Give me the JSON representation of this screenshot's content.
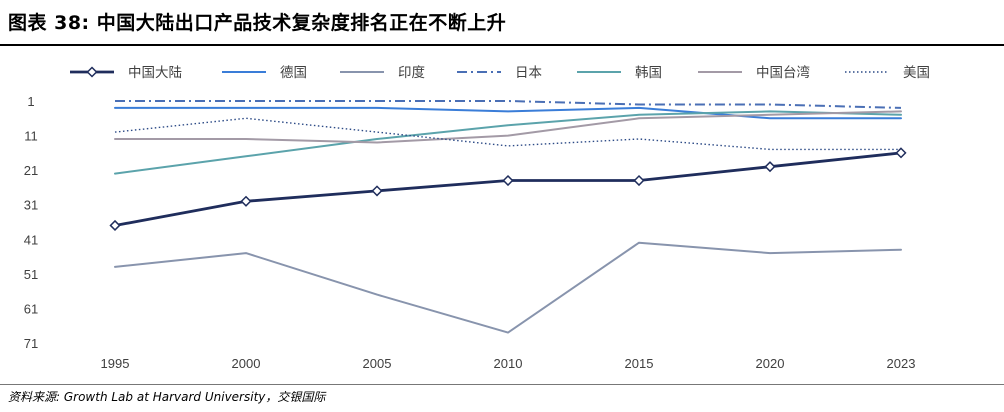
{
  "title": "图表 38: 中国大陆出口产品技术复杂度排名正在不断上升",
  "source": "资料来源: Growth Lab at Harvard University，交银国际",
  "chart_data": {
    "type": "line",
    "x": [
      1995,
      2000,
      2005,
      2010,
      2015,
      2020,
      2023
    ],
    "y_ticks": [
      1,
      11,
      21,
      31,
      41,
      51,
      61,
      71
    ],
    "ylim": [
      1,
      71
    ],
    "y_inverted": true,
    "grid": false,
    "legend_position": "top",
    "series": [
      {
        "name": "中国大陆",
        "values": [
          37,
          30,
          27,
          24,
          24,
          20,
          16
        ],
        "color": "#1f2d5c",
        "style": "solid",
        "width": 2.8,
        "marker": "diamond"
      },
      {
        "name": "德国",
        "values": [
          3,
          3,
          3,
          4,
          3,
          6,
          6
        ],
        "color": "#3a7dd8",
        "style": "solid",
        "width": 2
      },
      {
        "name": "印度",
        "values": [
          49,
          45,
          57,
          68,
          42,
          45,
          44
        ],
        "color": "#8894ad",
        "style": "solid",
        "width": 2
      },
      {
        "name": "日本",
        "values": [
          1,
          1,
          1,
          1,
          2,
          2,
          3
        ],
        "color": "#4a6fb5",
        "style": "dashdot",
        "width": 2
      },
      {
        "name": "韩国",
        "values": [
          22,
          17,
          12,
          8,
          5,
          4,
          5
        ],
        "color": "#5ba3ab",
        "style": "solid",
        "width": 2
      },
      {
        "name": "中国台湾",
        "values": [
          12,
          12,
          13,
          11,
          6,
          5,
          4
        ],
        "color": "#a39aa6",
        "style": "solid",
        "width": 2
      },
      {
        "name": "美国",
        "values": [
          10,
          6,
          10,
          14,
          12,
          15,
          15
        ],
        "color": "#2c4a86",
        "style": "dotted",
        "width": 1.4
      }
    ]
  }
}
